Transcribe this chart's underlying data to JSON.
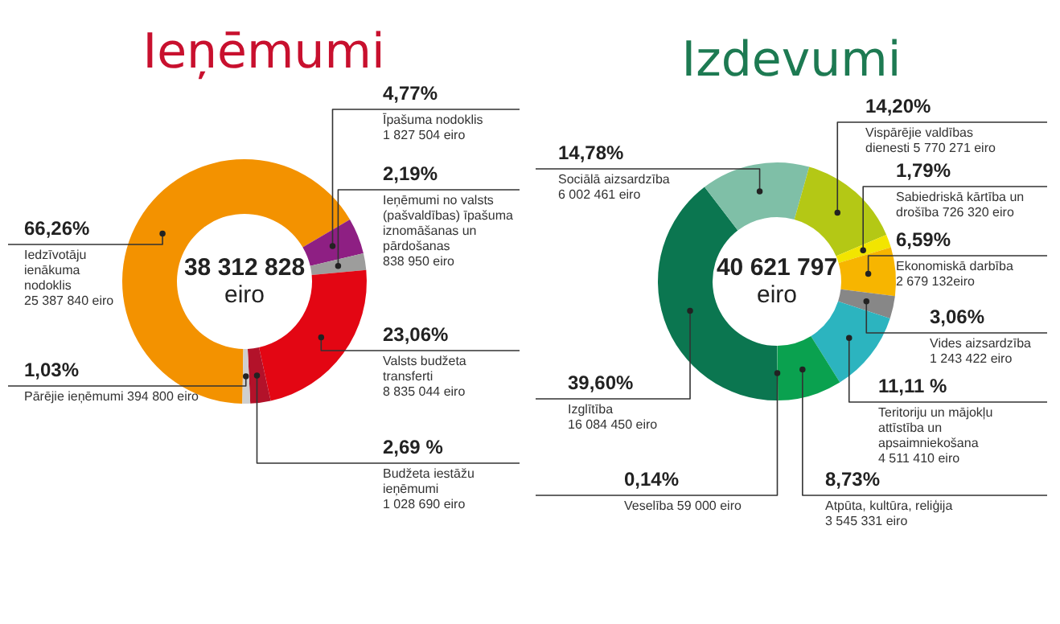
{
  "chart_data": [
    {
      "type": "donut",
      "title": "Ieņēmumi",
      "categories": [
        "Iedzīvotāju ienākuma nodoklis",
        "Īpašuma nodoklis",
        "Ieņēmumi no valsts (pašvaldības) īpašuma iznomāšanas un pārdošanas",
        "Valsts budžeta transferti",
        "Budžeta iestāžu ieņēmumi",
        "Pārējie ieņēmumi"
      ],
      "values": [
        66.26,
        4.77,
        2.19,
        23.06,
        2.69,
        1.03
      ],
      "value_labels": [
        "66,26%",
        "4,77%",
        "2,19%",
        "23,06%",
        "2,69 %",
        "1,03%"
      ],
      "colors": [
        "#f39200",
        "#8e1f83",
        "#9d9d9c",
        "#e30613",
        "#b3122a",
        "#cfcfcf"
      ],
      "annotations": [
        "38 312 828",
        "eiro",
        "25 387 840 eiro",
        "1 827 504 eiro",
        "838 950 eiro",
        "8 835 044 eiro",
        "1 028 690 eiro",
        "394 800 eiro"
      ]
    },
    {
      "type": "donut",
      "title": "Izdevumi",
      "categories": [
        "Izglītība",
        "Sociālā aizsardzība",
        "Vispārējie valdības dienesti",
        "Sabiedriskā kārtība un drošība",
        "Ekonomiskā darbība",
        "Vides aizsardzība",
        "Teritoriju un mājokļu attīstība un apsaimniekošana",
        "Atpūta, kultūra, reliģija",
        "Veselība"
      ],
      "values": [
        39.6,
        14.78,
        14.2,
        1.79,
        6.59,
        3.06,
        11.11,
        8.73,
        0.14
      ],
      "value_labels": [
        "39,60%",
        "14,78%",
        "14,20%",
        "1,79%",
        "6,59%",
        "3,06%",
        "11,11 %",
        "8,73%",
        "0,14%"
      ],
      "colors": [
        "#0b7650",
        "#7fbfa7",
        "#b4c815",
        "#f2e500",
        "#f7b500",
        "#878787",
        "#2cb4bf",
        "#0aa14f",
        "#4fae7d"
      ],
      "annotations": [
        "40 621 797",
        "eiro",
        "16 084 450 eiro",
        "6 002 461 eiro",
        "5 770 271 eiro",
        "726 320 eiro",
        "2 679 132eiro",
        "1 243 422 eiro",
        "4 511 410 eiro",
        "3 545 331 eiro",
        "59 000 eiro"
      ]
    }
  ]
}
